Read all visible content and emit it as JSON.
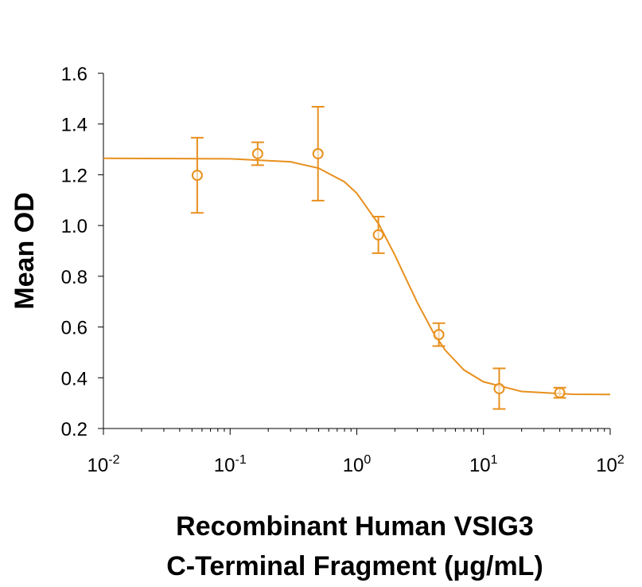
{
  "chart_data": {
    "type": "scatter",
    "xlabel": [
      "Recombinant Human VSIG3",
      "C-Terminal Fragment (μg/mL)"
    ],
    "ylabel": "Mean OD",
    "xscale": "log",
    "xlim": [
      0.01,
      100
    ],
    "xticks": [
      {
        "value": 0.01,
        "label": "10",
        "power": "-2"
      },
      {
        "value": 0.1,
        "label": "10",
        "power": "-1"
      },
      {
        "value": 1,
        "label": "10",
        "power": "0"
      },
      {
        "value": 10,
        "label": "10",
        "power": "1"
      },
      {
        "value": 100,
        "label": "10",
        "power": "2"
      }
    ],
    "ylim": [
      0.2,
      1.6
    ],
    "yticks": [
      0.2,
      0.4,
      0.6,
      0.8,
      {
        "value": 1,
        "label": "1.0"
      },
      1.2,
      1.4,
      1.6
    ],
    "color": "#e8901e",
    "series": [
      {
        "x": [
          0.055,
          0.165,
          0.494,
          1.48,
          4.44,
          13.3,
          40
        ],
        "values": [
          1.198,
          1.283,
          1.283,
          0.963,
          0.57,
          0.357,
          0.341
        ],
        "errors": [
          0.148,
          0.045,
          0.185,
          0.072,
          0.045,
          0.08,
          0.02
        ]
      }
    ],
    "curve": {
      "x": [
        0.01,
        0.1,
        0.3,
        0.5,
        0.8,
        1,
        1.5,
        2,
        2.5,
        3,
        4,
        5,
        7,
        10,
        20,
        50,
        100
      ],
      "values": [
        1.265,
        1.263,
        1.251,
        1.226,
        1.172,
        1.127,
        1.003,
        0.883,
        0.78,
        0.697,
        0.58,
        0.508,
        0.431,
        0.384,
        0.346,
        0.335,
        0.334
      ]
    }
  }
}
